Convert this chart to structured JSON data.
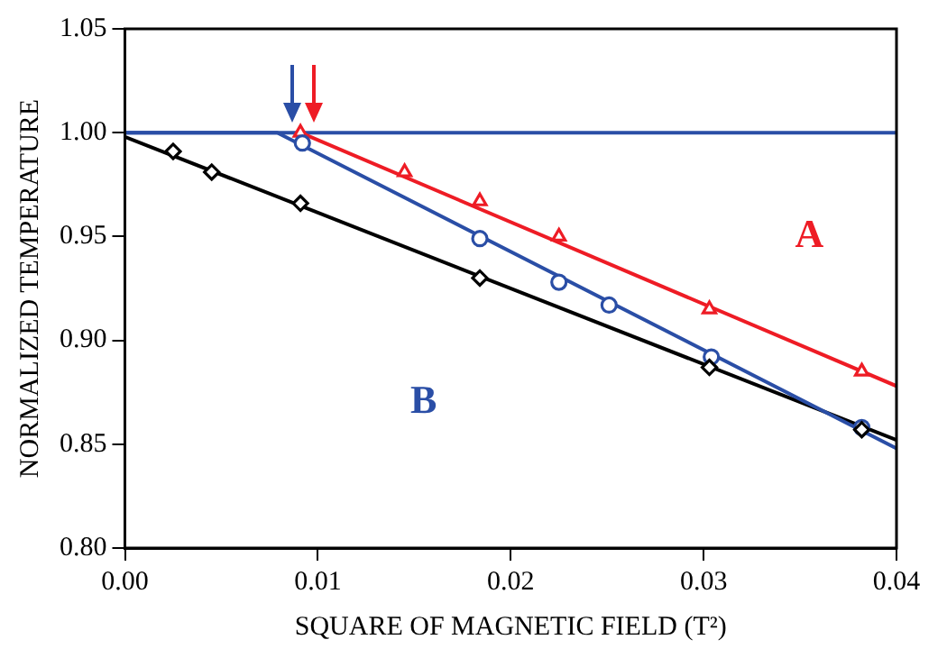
{
  "chart_data": {
    "type": "line",
    "xlabel": "SQUARE OF MAGNETIC FIELD (T²)",
    "ylabel": "NORMALIZED TEMPERATURE",
    "xlim": [
      0,
      0.04
    ],
    "xticks": [
      {
        "value": 0,
        "label": "0.00"
      },
      {
        "value": 0.01,
        "label": "0.01"
      },
      {
        "value": 0.02,
        "label": "0.02"
      },
      {
        "value": 0.03,
        "label": "0.03"
      },
      {
        "value": 0.04,
        "label": "0.04"
      }
    ],
    "ylim": [
      0.8,
      1.05
    ],
    "yticks": [
      {
        "value": 0.8,
        "label": "0.80"
      },
      {
        "value": 0.85,
        "label": "0.85"
      },
      {
        "value": 0.9,
        "label": "0.90"
      },
      {
        "value": 0.95,
        "label": "0.95"
      },
      {
        "value": 1.0,
        "label": "1.00"
      },
      {
        "value": 1.05,
        "label": "1.05"
      }
    ],
    "grid": false,
    "legend": false,
    "ref_lines": [
      {
        "axis": "y",
        "value": 1.0,
        "color": "#2a4ea6"
      }
    ],
    "series": [
      {
        "marker": "none",
        "color": "#ee1c25",
        "x": [
          0.0091,
          0.04
        ],
        "values": [
          1.0,
          0.878
        ]
      },
      {
        "marker": "none",
        "color": "#2a4ea6",
        "x": [
          0,
          0.0079,
          0.04
        ],
        "values": [
          1.0,
          1.0,
          0.848
        ]
      },
      {
        "marker": "none",
        "color": "#000000",
        "x": [
          0,
          0.04
        ],
        "values": [
          0.998,
          0.852
        ]
      },
      {
        "type": "scatter",
        "marker": "triangle",
        "color": "#ee1c25",
        "x": [
          0.0091,
          0.0145,
          0.0184,
          0.0225,
          0.0303,
          0.0382
        ],
        "values": [
          1.0,
          0.981,
          0.967,
          0.95,
          0.915,
          0.885
        ]
      },
      {
        "type": "scatter",
        "marker": "circle",
        "color": "#2a4ea6",
        "x": [
          0.0092,
          0.0184,
          0.0225,
          0.0251,
          0.0304,
          0.0382
        ],
        "values": [
          0.995,
          0.949,
          0.928,
          0.917,
          0.892,
          0.858
        ]
      },
      {
        "type": "scatter",
        "marker": "diamond",
        "color": "#000000",
        "x": [
          0.0025,
          0.0045,
          0.0091,
          0.0184,
          0.0303,
          0.0382
        ],
        "values": [
          0.991,
          0.981,
          0.966,
          0.93,
          0.887,
          0.857
        ]
      }
    ],
    "annotations": [
      "A",
      "B"
    ]
  }
}
